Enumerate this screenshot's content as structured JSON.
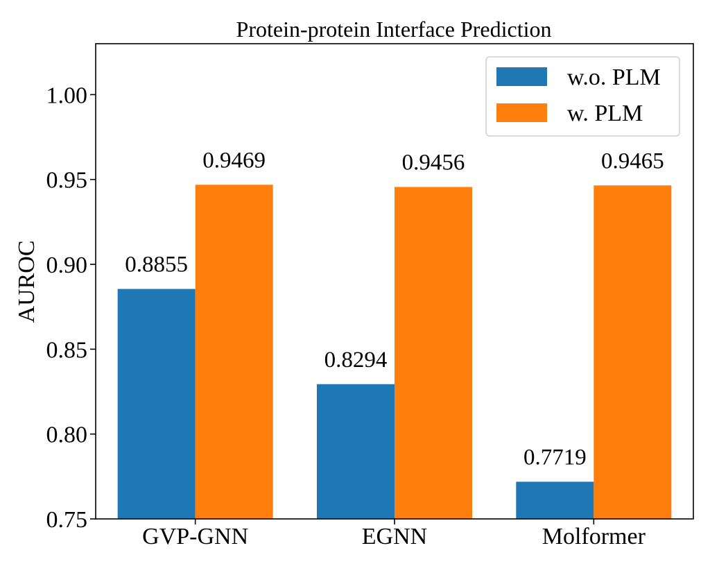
{
  "chart_data": {
    "type": "bar",
    "title": "Protein-protein Interface Prediction",
    "xlabel": "",
    "ylabel": "AUROC",
    "categories": [
      "GVP-GNN",
      "EGNN",
      "Molformer"
    ],
    "series": [
      {
        "name": "w.o. PLM",
        "values": [
          0.8855,
          0.8294,
          0.7719
        ],
        "labels": [
          "0.8855",
          "0.8294",
          "0.7719"
        ],
        "color": "#1f77b4"
      },
      {
        "name": "w. PLM",
        "values": [
          0.9469,
          0.9456,
          0.9465
        ],
        "labels": [
          "0.9469",
          "0.9456",
          "0.9465"
        ],
        "color": "#ff7f0e"
      }
    ],
    "ylim": [
      0.75,
      1.03
    ],
    "yticks": [
      0.75,
      0.8,
      0.85,
      0.9,
      0.95,
      1.0
    ],
    "ytick_labels": [
      "0.75",
      "0.80",
      "0.85",
      "0.90",
      "0.95",
      "1.00"
    ],
    "grid": false,
    "legend_position": "top-right"
  }
}
